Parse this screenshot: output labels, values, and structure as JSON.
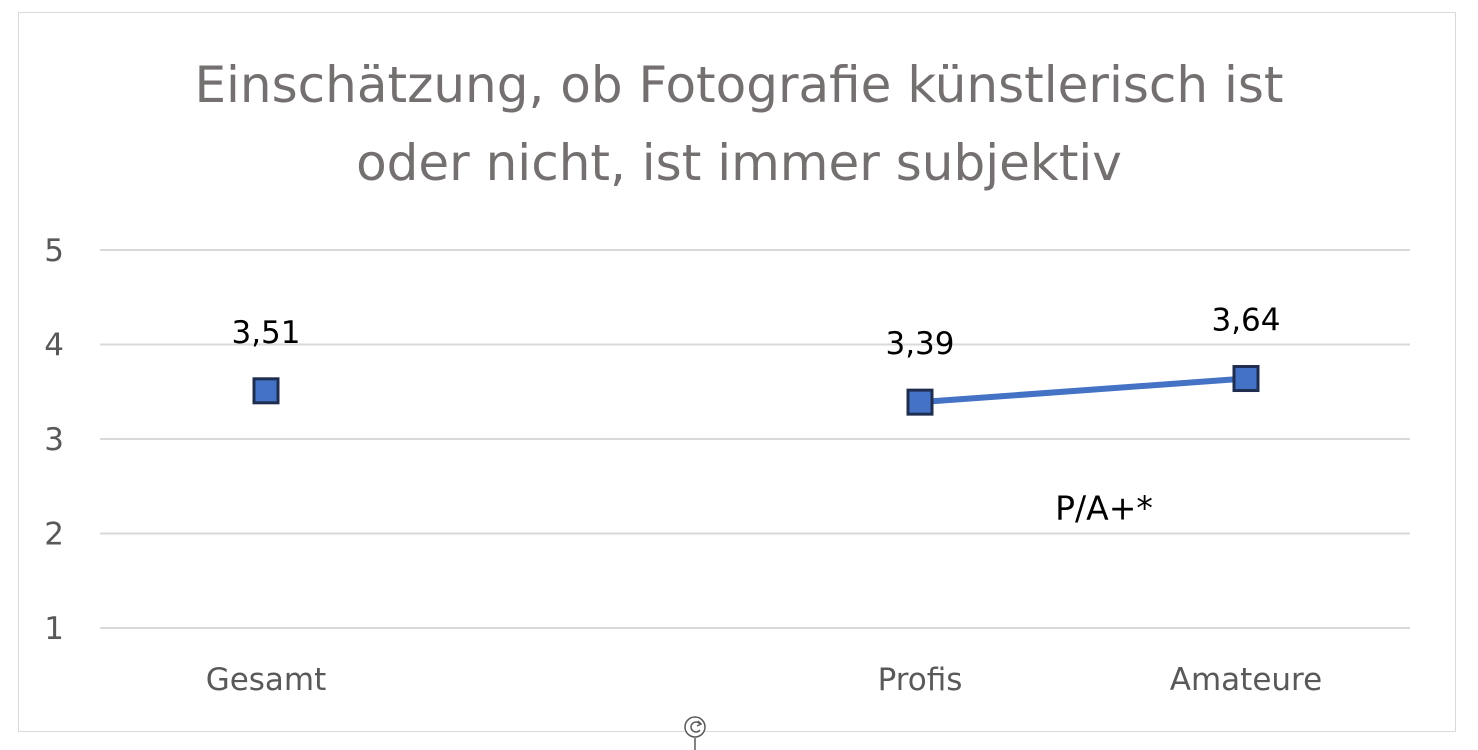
{
  "chart_data": {
    "type": "line",
    "title": "Einschätzung, ob Fotografie künstlerisch ist oder nicht, ist immer subjektiv",
    "title_lines": [
      "Einschätzung, ob Fotografie künstlerisch ist",
      "oder nicht, ist immer subjektiv"
    ],
    "categories": [
      "Gesamt",
      "",
      "Profis",
      "Amateure"
    ],
    "series": [
      {
        "values": [
          3.51,
          null,
          3.39,
          3.64
        ],
        "data_labels": [
          "3,51",
          "",
          "3,39",
          "3,64"
        ],
        "color": "#4472c4",
        "marker": "square"
      }
    ],
    "y_ticks": [
      "1",
      "2",
      "3",
      "4",
      "5"
    ],
    "ylim": [
      1,
      5
    ],
    "xlabel": "",
    "ylabel": "",
    "grid": true,
    "legend": "none",
    "annotations": [
      {
        "text": "P/A+*",
        "category": "Amateure",
        "y": 2.15
      }
    ]
  },
  "colors": {
    "series": "#4472c4",
    "marker_border": "#1f2d50",
    "gridline": "#d9d9d9",
    "title": "#757070",
    "axis_text": "#595959"
  },
  "icons": {
    "rotate_handle": "rotate-handle-icon"
  }
}
